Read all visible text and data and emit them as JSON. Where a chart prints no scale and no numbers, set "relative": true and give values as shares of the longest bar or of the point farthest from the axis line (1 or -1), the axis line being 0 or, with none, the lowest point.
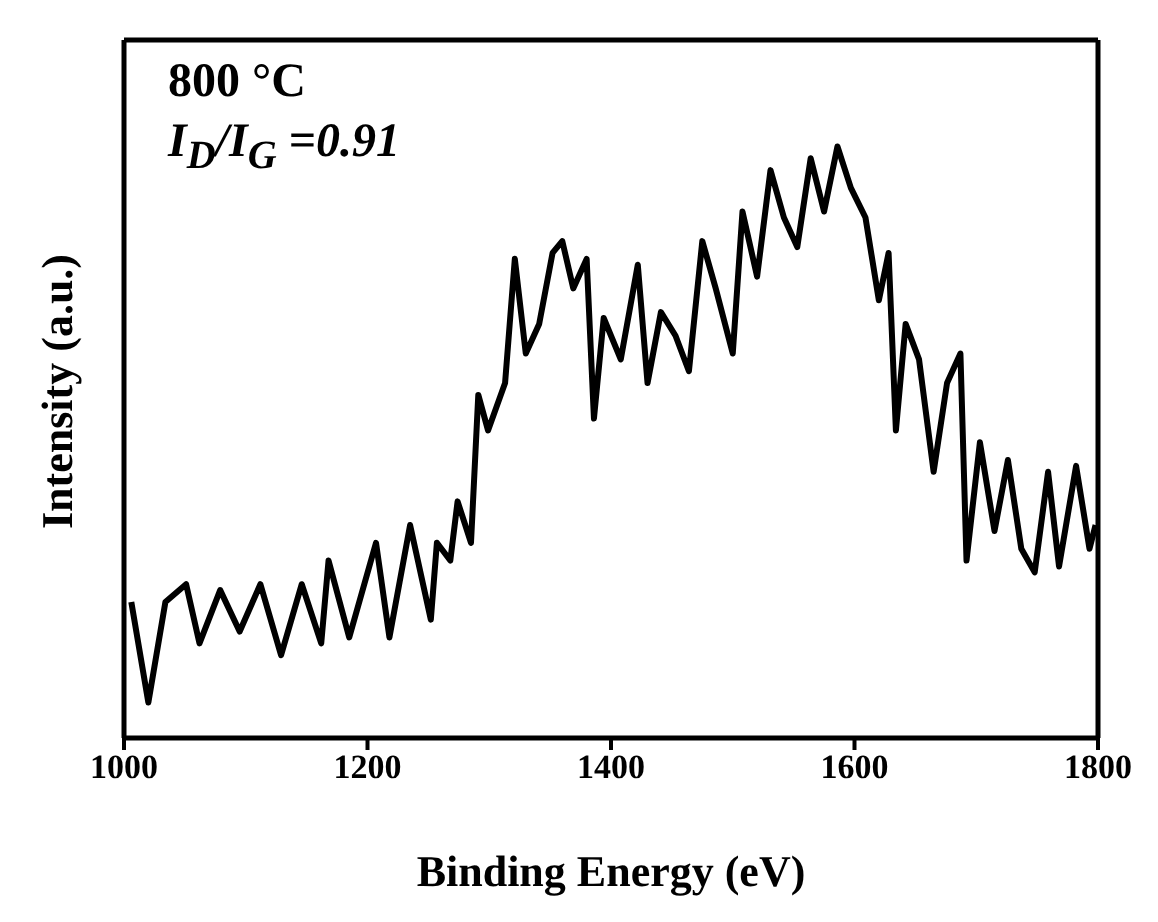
{
  "chart_data": {
    "type": "line",
    "relative": true,
    "xlabel": "Binding Energy (eV)",
    "ylabel": "Intensity (a.u.)",
    "annotations": [
      "800 °C",
      "I$_{D}$/I$_{G}$ =0.91"
    ],
    "xlim": [
      1000,
      1800
    ],
    "xticks": [
      1000,
      1200,
      1400,
      1600,
      1800
    ],
    "grid": false,
    "marker": "none",
    "x": [
      1006,
      1020,
      1034,
      1051,
      1062,
      1079,
      1095,
      1112,
      1129,
      1146,
      1162,
      1168,
      1185,
      1207,
      1218,
      1235,
      1252,
      1257,
      1268,
      1274,
      1285,
      1291,
      1299,
      1313,
      1321,
      1330,
      1341,
      1352,
      1360,
      1369,
      1380,
      1386,
      1394,
      1408,
      1422,
      1430,
      1441,
      1453,
      1464,
      1475,
      1486,
      1500,
      1508,
      1520,
      1531,
      1542,
      1553,
      1564,
      1575,
      1586,
      1597,
      1609,
      1620,
      1628,
      1634,
      1642,
      1653,
      1665,
      1676,
      1687,
      1692,
      1703,
      1715,
      1726,
      1737,
      1748,
      1759,
      1768,
      1782,
      1793,
      1798
    ],
    "series": [
      {
        "color": "#000000",
        "values": [
          0.23,
          0.06,
          0.23,
          0.26,
          0.16,
          0.25,
          0.18,
          0.26,
          0.14,
          0.26,
          0.16,
          0.3,
          0.17,
          0.33,
          0.17,
          0.36,
          0.2,
          0.33,
          0.3,
          0.4,
          0.33,
          0.58,
          0.52,
          0.6,
          0.81,
          0.65,
          0.7,
          0.82,
          0.84,
          0.76,
          0.81,
          0.54,
          0.71,
          0.64,
          0.8,
          0.6,
          0.72,
          0.68,
          0.62,
          0.84,
          0.76,
          0.65,
          0.89,
          0.78,
          0.96,
          0.88,
          0.83,
          0.98,
          0.89,
          1,
          0.93,
          0.88,
          0.74,
          0.82,
          0.52,
          0.7,
          0.64,
          0.45,
          0.6,
          0.65,
          0.3,
          0.5,
          0.35,
          0.47,
          0.32,
          0.28,
          0.45,
          0.29,
          0.46,
          0.32,
          0.36
        ]
      }
    ]
  }
}
